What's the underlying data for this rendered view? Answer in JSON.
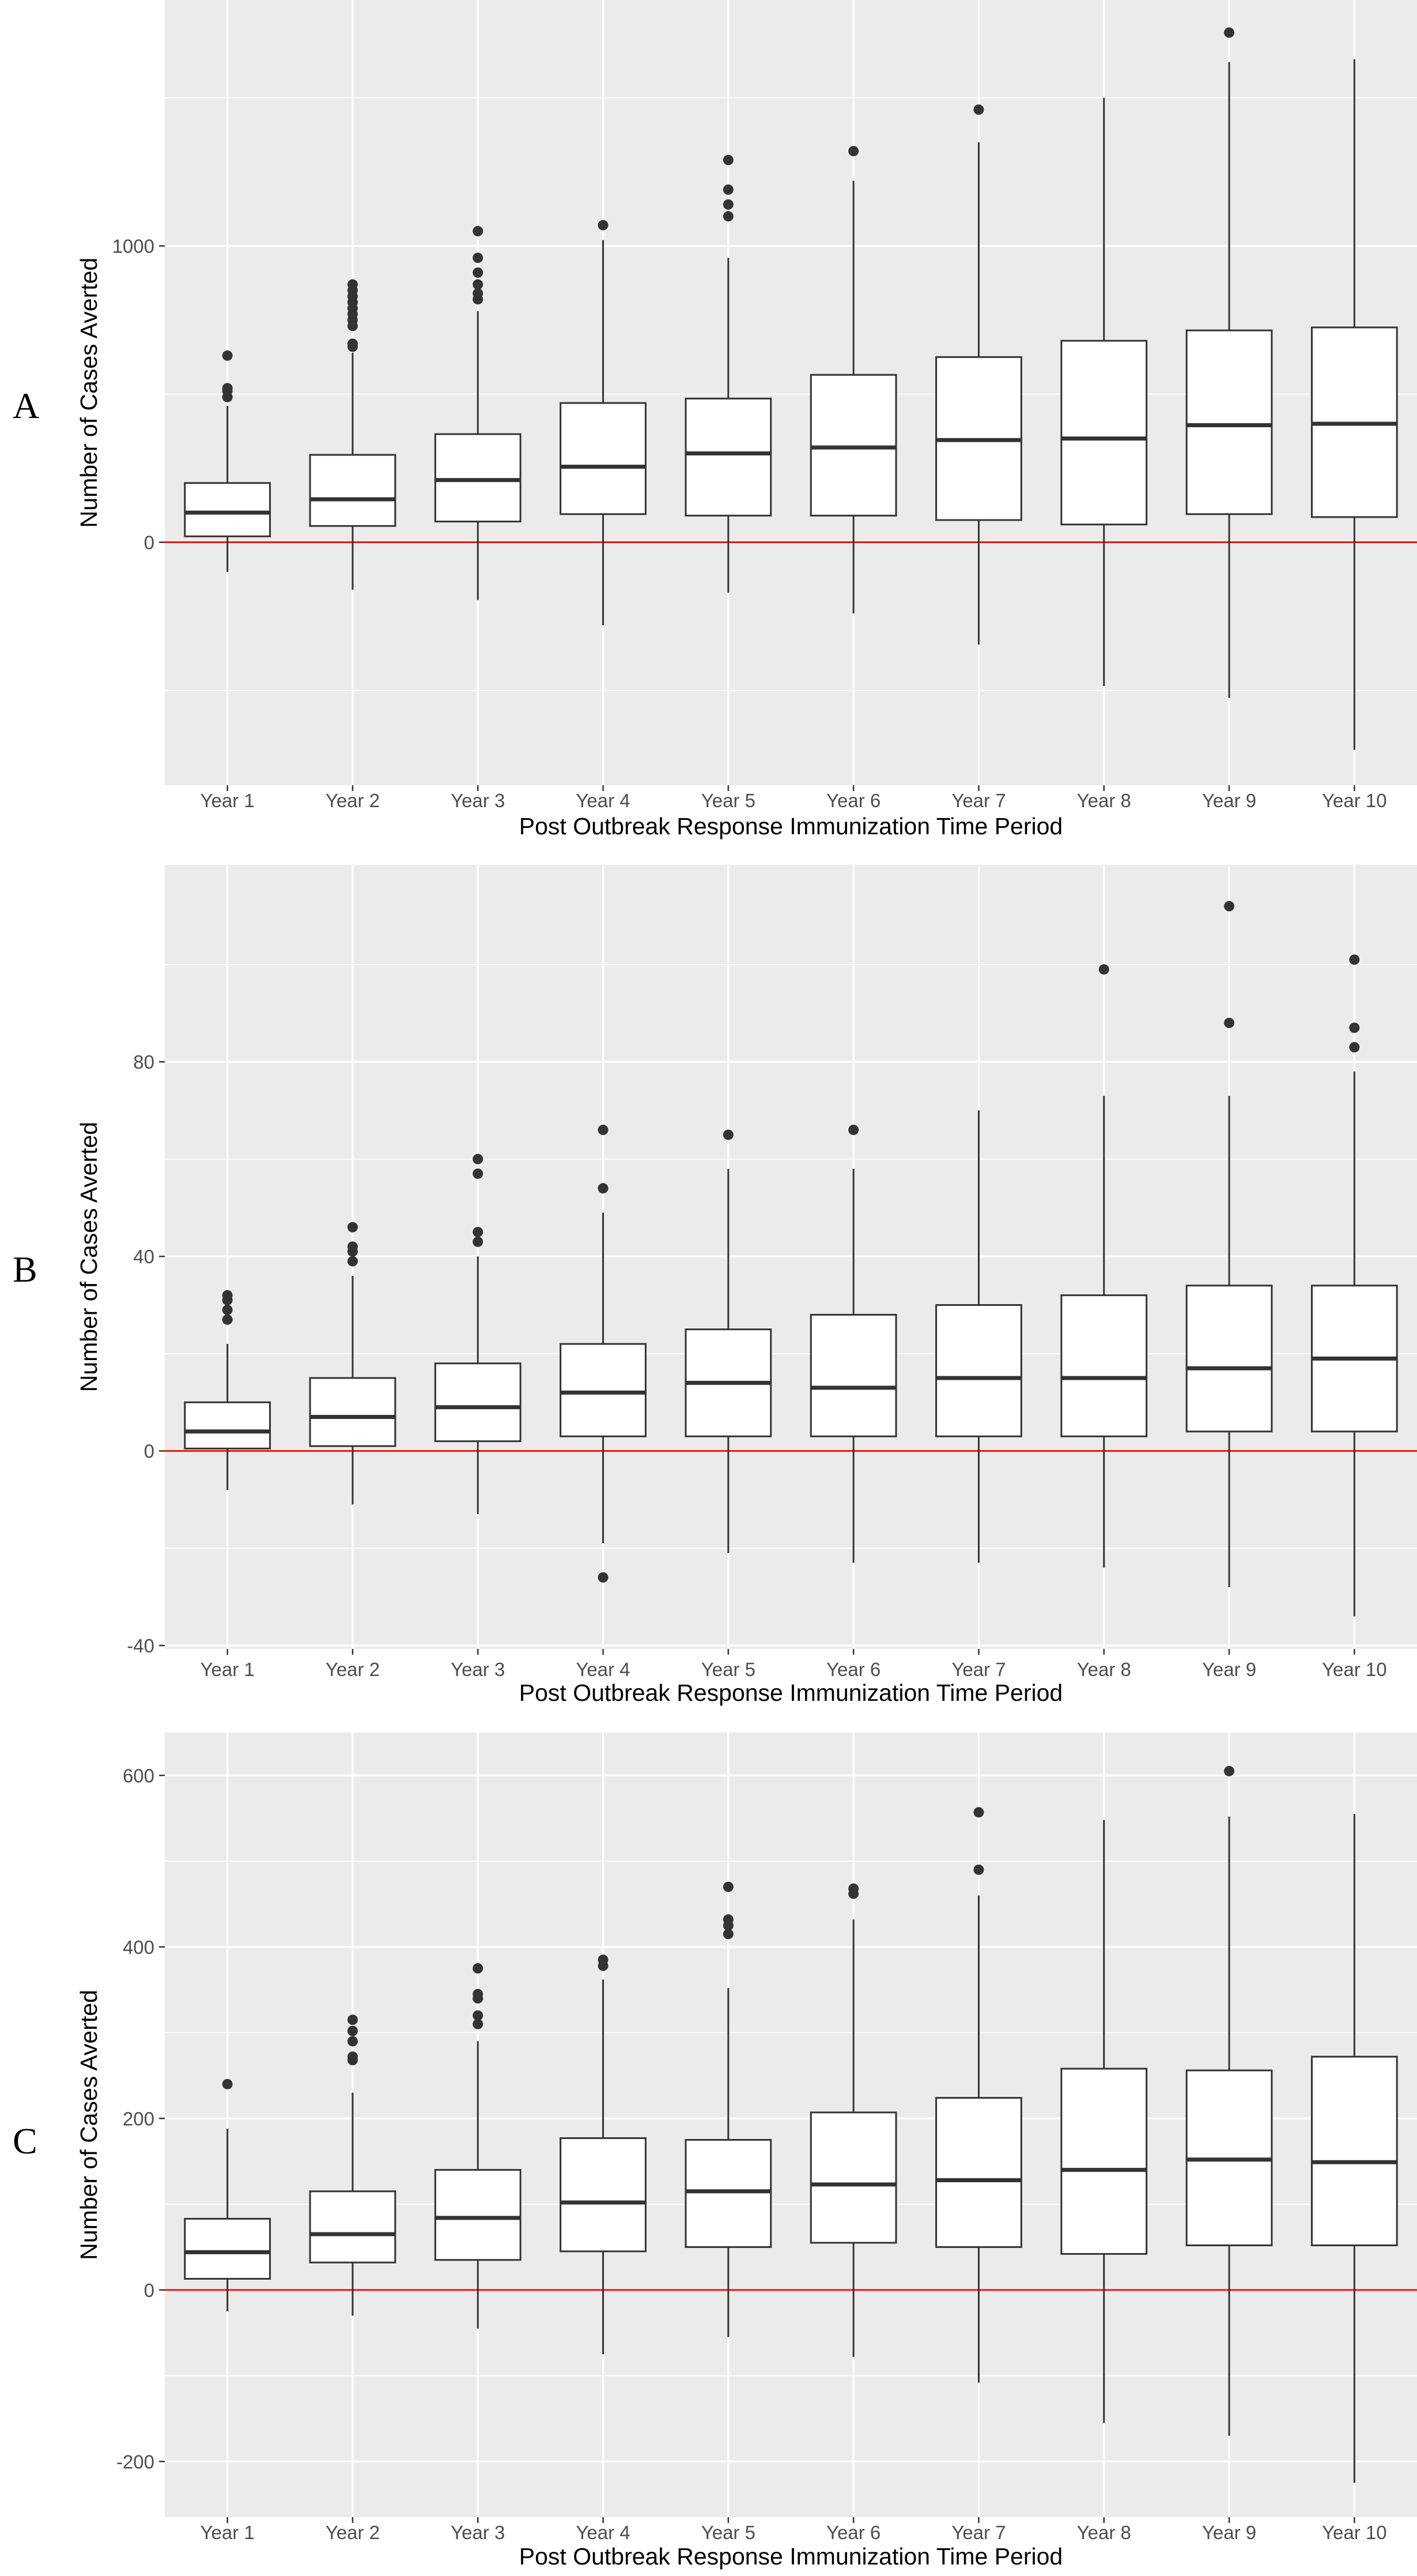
{
  "chart_data": [
    {
      "type": "box",
      "panel_label": "A",
      "xlabel": "Post Outbreak Response Immunization Time Period",
      "ylabel": "Number of Cases Averted",
      "categories": [
        "Year 1",
        "Year 2",
        "Year 3",
        "Year 4",
        "Year 5",
        "Year 6",
        "Year 7",
        "Year 8",
        "Year 9",
        "Year 10"
      ],
      "yticks": [
        0,
        1000
      ],
      "ylim": [
        -820,
        1830
      ],
      "reference_line": {
        "y": 0,
        "color": "#e8160c"
      },
      "grid": true,
      "boxes": [
        {
          "category": "Year 1",
          "whisker_low": -100,
          "q1": 20,
          "median": 100,
          "q3": 200,
          "whisker_high": 460,
          "outliers": [
            490,
            510,
            520,
            630
          ]
        },
        {
          "category": "Year 2",
          "whisker_low": -160,
          "q1": 55,
          "median": 145,
          "q3": 295,
          "whisker_high": 640,
          "outliers": [
            660,
            670,
            730,
            750,
            770,
            790,
            810,
            830,
            850,
            870
          ]
        },
        {
          "category": "Year 3",
          "whisker_low": -195,
          "q1": 70,
          "median": 210,
          "q3": 365,
          "whisker_high": 780,
          "outliers": [
            820,
            840,
            870,
            910,
            960,
            1050
          ]
        },
        {
          "category": "Year 4",
          "whisker_low": -280,
          "q1": 95,
          "median": 255,
          "q3": 470,
          "whisker_high": 1020,
          "outliers": [
            1070
          ]
        },
        {
          "category": "Year 5",
          "whisker_low": -170,
          "q1": 90,
          "median": 300,
          "q3": 485,
          "whisker_high": 960,
          "outliers": [
            1100,
            1140,
            1190,
            1290
          ]
        },
        {
          "category": "Year 6",
          "whisker_low": -240,
          "q1": 90,
          "median": 320,
          "q3": 565,
          "whisker_high": 1220,
          "outliers": [
            1320
          ]
        },
        {
          "category": "Year 7",
          "whisker_low": -345,
          "q1": 75,
          "median": 345,
          "q3": 625,
          "whisker_high": 1350,
          "outliers": [
            1460
          ]
        },
        {
          "category": "Year 8",
          "whisker_low": -485,
          "q1": 60,
          "median": 350,
          "q3": 680,
          "whisker_high": 1500,
          "outliers": []
        },
        {
          "category": "Year 9",
          "whisker_low": -525,
          "q1": 95,
          "median": 395,
          "q3": 715,
          "whisker_high": 1620,
          "outliers": [
            1720
          ]
        },
        {
          "category": "Year 10",
          "whisker_low": -700,
          "q1": 85,
          "median": 400,
          "q3": 725,
          "whisker_high": 1630,
          "outliers": []
        }
      ]
    },
    {
      "type": "box",
      "panel_label": "B",
      "xlabel": "Post Outbreak Response Immunization Time Period",
      "ylabel": "Number of Cases Averted",
      "categories": [
        "Year 1",
        "Year 2",
        "Year 3",
        "Year 4",
        "Year 5",
        "Year 6",
        "Year 7",
        "Year 8",
        "Year 9",
        "Year 10"
      ],
      "yticks": [
        -40,
        0,
        40,
        80
      ],
      "ylim": [
        -40.7,
        120.5
      ],
      "reference_line": {
        "y": 0,
        "color": "#e8160c"
      },
      "grid": true,
      "boxes": [
        {
          "category": "Year 1",
          "whisker_low": -8,
          "q1": 0.5,
          "median": 4,
          "q3": 10,
          "whisker_high": 22,
          "outliers": [
            27,
            29,
            31,
            32
          ]
        },
        {
          "category": "Year 2",
          "whisker_low": -11,
          "q1": 1,
          "median": 7,
          "q3": 15,
          "whisker_high": 36,
          "outliers": [
            39,
            41,
            42,
            46
          ]
        },
        {
          "category": "Year 3",
          "whisker_low": -13,
          "q1": 2,
          "median": 9,
          "q3": 18,
          "whisker_high": 40,
          "outliers": [
            43,
            45,
            57,
            60
          ]
        },
        {
          "category": "Year 4",
          "whisker_low": -19,
          "q1": 3,
          "median": 12,
          "q3": 22,
          "whisker_high": 49,
          "outliers": [
            -26,
            54,
            66
          ]
        },
        {
          "category": "Year 5",
          "whisker_low": -21,
          "q1": 3,
          "median": 14,
          "q3": 25,
          "whisker_high": 58,
          "outliers": [
            65
          ]
        },
        {
          "category": "Year 6",
          "whisker_low": -23,
          "q1": 3,
          "median": 13,
          "q3": 28,
          "whisker_high": 58,
          "outliers": [
            66
          ]
        },
        {
          "category": "Year 7",
          "whisker_low": -23,
          "q1": 3,
          "median": 15,
          "q3": 30,
          "whisker_high": 70,
          "outliers": []
        },
        {
          "category": "Year 8",
          "whisker_low": -24,
          "q1": 3,
          "median": 15,
          "q3": 32,
          "whisker_high": 73,
          "outliers": [
            99
          ]
        },
        {
          "category": "Year 9",
          "whisker_low": -28,
          "q1": 4,
          "median": 17,
          "q3": 34,
          "whisker_high": 73,
          "outliers": [
            88,
            112
          ]
        },
        {
          "category": "Year 10",
          "whisker_low": -34,
          "q1": 4,
          "median": 19,
          "q3": 34,
          "whisker_high": 78,
          "outliers": [
            83,
            87,
            101
          ]
        }
      ]
    },
    {
      "type": "box",
      "panel_label": "C",
      "xlabel": "Post Outbreak Response Immunization Time Period",
      "ylabel": "Number of Cases Averted",
      "categories": [
        "Year 1",
        "Year 2",
        "Year 3",
        "Year 4",
        "Year 5",
        "Year 6",
        "Year 7",
        "Year 8",
        "Year 9",
        "Year 10"
      ],
      "yticks": [
        -200,
        0,
        200,
        400,
        600
      ],
      "ylim": [
        -265,
        650
      ],
      "reference_line": {
        "y": 0,
        "color": "#e8160c"
      },
      "grid": true,
      "boxes": [
        {
          "category": "Year 1",
          "whisker_low": -25,
          "q1": 13,
          "median": 44,
          "q3": 83,
          "whisker_high": 188,
          "outliers": [
            240
          ]
        },
        {
          "category": "Year 2",
          "whisker_low": -30,
          "q1": 32,
          "median": 65,
          "q3": 115,
          "whisker_high": 230,
          "outliers": [
            268,
            272,
            290,
            302,
            315
          ]
        },
        {
          "category": "Year 3",
          "whisker_low": -45,
          "q1": 35,
          "median": 84,
          "q3": 140,
          "whisker_high": 290,
          "outliers": [
            310,
            320,
            340,
            345,
            375
          ]
        },
        {
          "category": "Year 4",
          "whisker_low": -75,
          "q1": 45,
          "median": 102,
          "q3": 177,
          "whisker_high": 362,
          "outliers": [
            378,
            385
          ]
        },
        {
          "category": "Year 5",
          "whisker_low": -55,
          "q1": 50,
          "median": 115,
          "q3": 175,
          "whisker_high": 352,
          "outliers": [
            415,
            425,
            432,
            470
          ]
        },
        {
          "category": "Year 6",
          "whisker_low": -78,
          "q1": 55,
          "median": 123,
          "q3": 207,
          "whisker_high": 432,
          "outliers": [
            462,
            468
          ]
        },
        {
          "category": "Year 7",
          "whisker_low": -108,
          "q1": 50,
          "median": 128,
          "q3": 224,
          "whisker_high": 460,
          "outliers": [
            490,
            557
          ]
        },
        {
          "category": "Year 8",
          "whisker_low": -155,
          "q1": 42,
          "median": 140,
          "q3": 258,
          "whisker_high": 548,
          "outliers": []
        },
        {
          "category": "Year 9",
          "whisker_low": -170,
          "q1": 52,
          "median": 152,
          "q3": 256,
          "whisker_high": 552,
          "outliers": [
            605
          ]
        },
        {
          "category": "Year 10",
          "whisker_low": -225,
          "q1": 52,
          "median": 149,
          "q3": 272,
          "whisker_high": 555,
          "outliers": []
        }
      ]
    }
  ]
}
